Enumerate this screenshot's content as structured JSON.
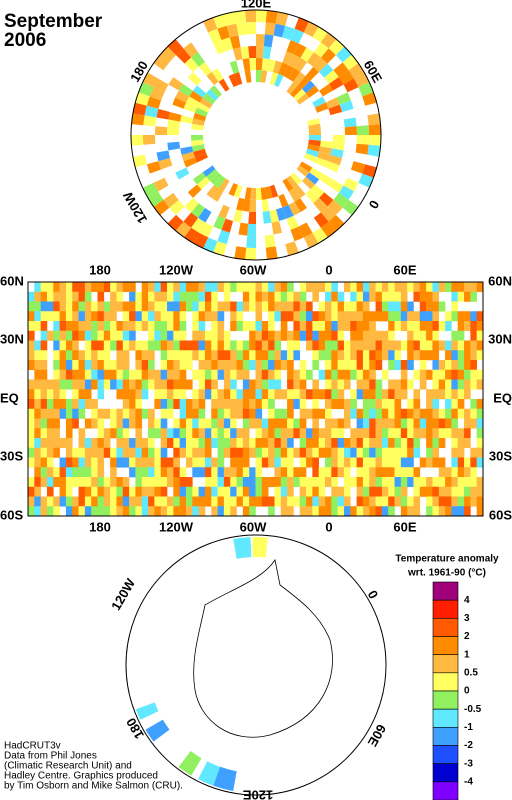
{
  "title": {
    "line1": "September",
    "line2": "2006"
  },
  "north_map": {
    "labels": [
      "120E",
      "60E",
      "0",
      "120W",
      "180"
    ]
  },
  "world_map": {
    "top_labels": [
      "180",
      "120W",
      "60W",
      "0",
      "60E"
    ],
    "bottom_labels": [
      "180",
      "120W",
      "60W",
      "0",
      "60E"
    ],
    "left_labels": [
      "60N",
      "30N",
      "EQ",
      "30S",
      "60S"
    ],
    "right_labels": [
      "60N",
      "30N",
      "EQ",
      "30S",
      "60S"
    ]
  },
  "south_map": {
    "labels": [
      "120W",
      "0",
      "60E",
      "120E",
      "180"
    ]
  },
  "legend": {
    "title": "Temperature anomaly",
    "subtitle": "wrt. 1961-90  (°C)",
    "labels": [
      "4",
      "3",
      "2",
      "1",
      "0.5",
      "0",
      "-0.5",
      "-1",
      "-2",
      "-3",
      "-4"
    ],
    "colors": [
      "#a0007a",
      "#ff1e00",
      "#ff5a00",
      "#ff8c00",
      "#ffb840",
      "#ffff60",
      "#90f060",
      "#60e8ff",
      "#40a0ff",
      "#1e50ff",
      "#0000d0",
      "#8000ff"
    ]
  },
  "credits": [
    "HadCRUT3v",
    "Data from Phil Jones",
    "(Climatic Research Unit) and",
    "Hadley Centre.  Graphics produced",
    "by Tim Osborn and Mike Salmon (CRU)."
  ]
}
